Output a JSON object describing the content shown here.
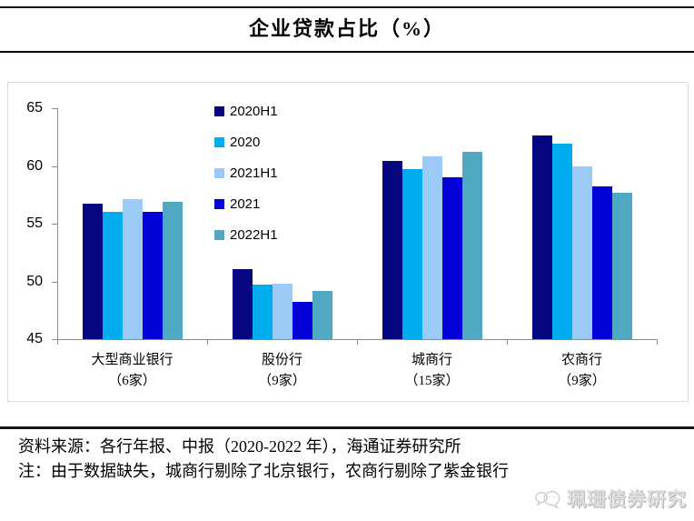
{
  "chart_data": {
    "type": "bar",
    "title": "企业贷款占比（%）",
    "xlabel": "",
    "ylabel": "",
    "ylim": [
      45,
      65
    ],
    "yticks": [
      65,
      60,
      55,
      50,
      45
    ],
    "grid": false,
    "legend_position": "upper-left-inside",
    "categories": [
      {
        "name": "大型商业银行",
        "count": "（6家）"
      },
      {
        "name": "股份行",
        "count": "（9家）"
      },
      {
        "name": "城商行",
        "count": "（15家）"
      },
      {
        "name": "农商行",
        "count": "（9家）"
      }
    ],
    "series": [
      {
        "name": "2020H1",
        "color": "#060680",
        "values": [
          56.7,
          51.1,
          60.4,
          62.6
        ]
      },
      {
        "name": "2020",
        "color": "#00AEEF",
        "values": [
          56.0,
          49.7,
          59.7,
          61.9
        ]
      },
      {
        "name": "2021H1",
        "color": "#9CCAF6",
        "values": [
          57.1,
          49.8,
          60.8,
          60.0
        ]
      },
      {
        "name": "2021",
        "color": "#0202D6",
        "values": [
          56.0,
          48.2,
          59.0,
          58.2
        ]
      },
      {
        "name": "2022H1",
        "color": "#4FA9C3",
        "values": [
          56.9,
          49.2,
          61.2,
          57.7
        ]
      }
    ]
  },
  "footer": {
    "source": "资料来源：各行年报、中报（2020-2022 年），海通证券研究所",
    "note": "注：由于数据缺失，城商行剔除了北京银行，农商行剔除了紫金银行"
  },
  "watermark": {
    "label": "珮珊债券研究",
    "icon": "speech-bubbles-icon"
  }
}
